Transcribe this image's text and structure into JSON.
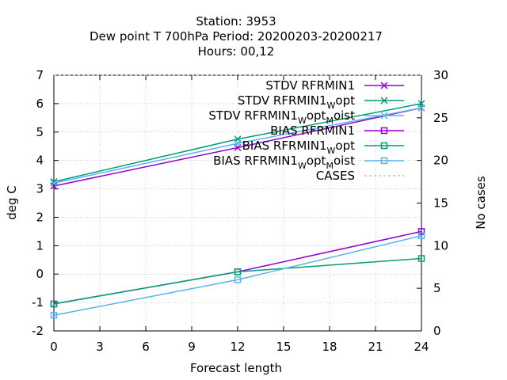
{
  "chart_data": {
    "type": "line",
    "title_lines": [
      "Station:     3953",
      "Dew point T 700hPa   Period: 20200203-20200217",
      "Hours:  00,12"
    ],
    "xlabel": "Forecast length",
    "ylabel": "deg C",
    "y2label": "No cases",
    "xlim": [
      0,
      24
    ],
    "ylim": [
      -2,
      7
    ],
    "y2lim": [
      0,
      30
    ],
    "x_ticks": [
      "0",
      "3",
      "6",
      "9",
      "12",
      "15",
      "18",
      "21",
      "24"
    ],
    "y_ticks": [
      "-2",
      "-1",
      "0",
      "1",
      "2",
      "3",
      "4",
      "5",
      "6",
      "7"
    ],
    "y2_ticks": [
      "0",
      "5",
      "10",
      "15",
      "20",
      "25",
      "30"
    ],
    "grid": true,
    "legend_position": "top-right",
    "x": [
      0,
      12,
      24
    ],
    "series": [
      {
        "name": "STDV RFRMIN1",
        "label_main": "STDV RFRMIN1",
        "marker": "x",
        "color": "#9400d3",
        "values": [
          3.1,
          4.45,
          5.85
        ]
      },
      {
        "name": "STDV RFRMIN1_W opt",
        "label_main": "STDV RFRMIN1",
        "label_sub": "W",
        "label_tail": "opt",
        "marker": "x",
        "color": "#009e73",
        "values": [
          3.25,
          4.75,
          6.0
        ]
      },
      {
        "name": "STDV RFRMIN1_W opt_M oist",
        "label_main": "STDV RFRMIN1",
        "label_sub": "W",
        "label_tail": "opt",
        "label_sub2": "M",
        "label_tail2": "oist",
        "marker": "x",
        "color": "#56b4e9",
        "values": [
          3.2,
          4.6,
          5.85
        ]
      },
      {
        "name": "BIAS RFRMIN1",
        "label_main": "BIAS RFRMIN1",
        "marker": "square",
        "color": "#9400d3",
        "values": [
          -1.05,
          0.08,
          1.5
        ]
      },
      {
        "name": "BIAS RFRMIN1_W opt",
        "label_main": "BIAS RFRMIN1",
        "label_sub": "W",
        "label_tail": "opt",
        "marker": "square",
        "color": "#009e73",
        "values": [
          -1.05,
          0.08,
          0.55
        ]
      },
      {
        "name": "BIAS RFRMIN1_W opt_M oist",
        "label_main": "BIAS RFRMIN1",
        "label_sub": "W",
        "label_tail": "opt",
        "label_sub2": "M",
        "label_tail2": "oist",
        "marker": "square",
        "color": "#56b4e9",
        "values": [
          -1.45,
          -0.2,
          1.35
        ]
      },
      {
        "name": "CASES",
        "label_main": "CASES",
        "marker": "none",
        "color": "#a0a0a0",
        "dashed": true,
        "axis": "y2",
        "values": [
          30,
          30,
          30
        ]
      }
    ]
  }
}
